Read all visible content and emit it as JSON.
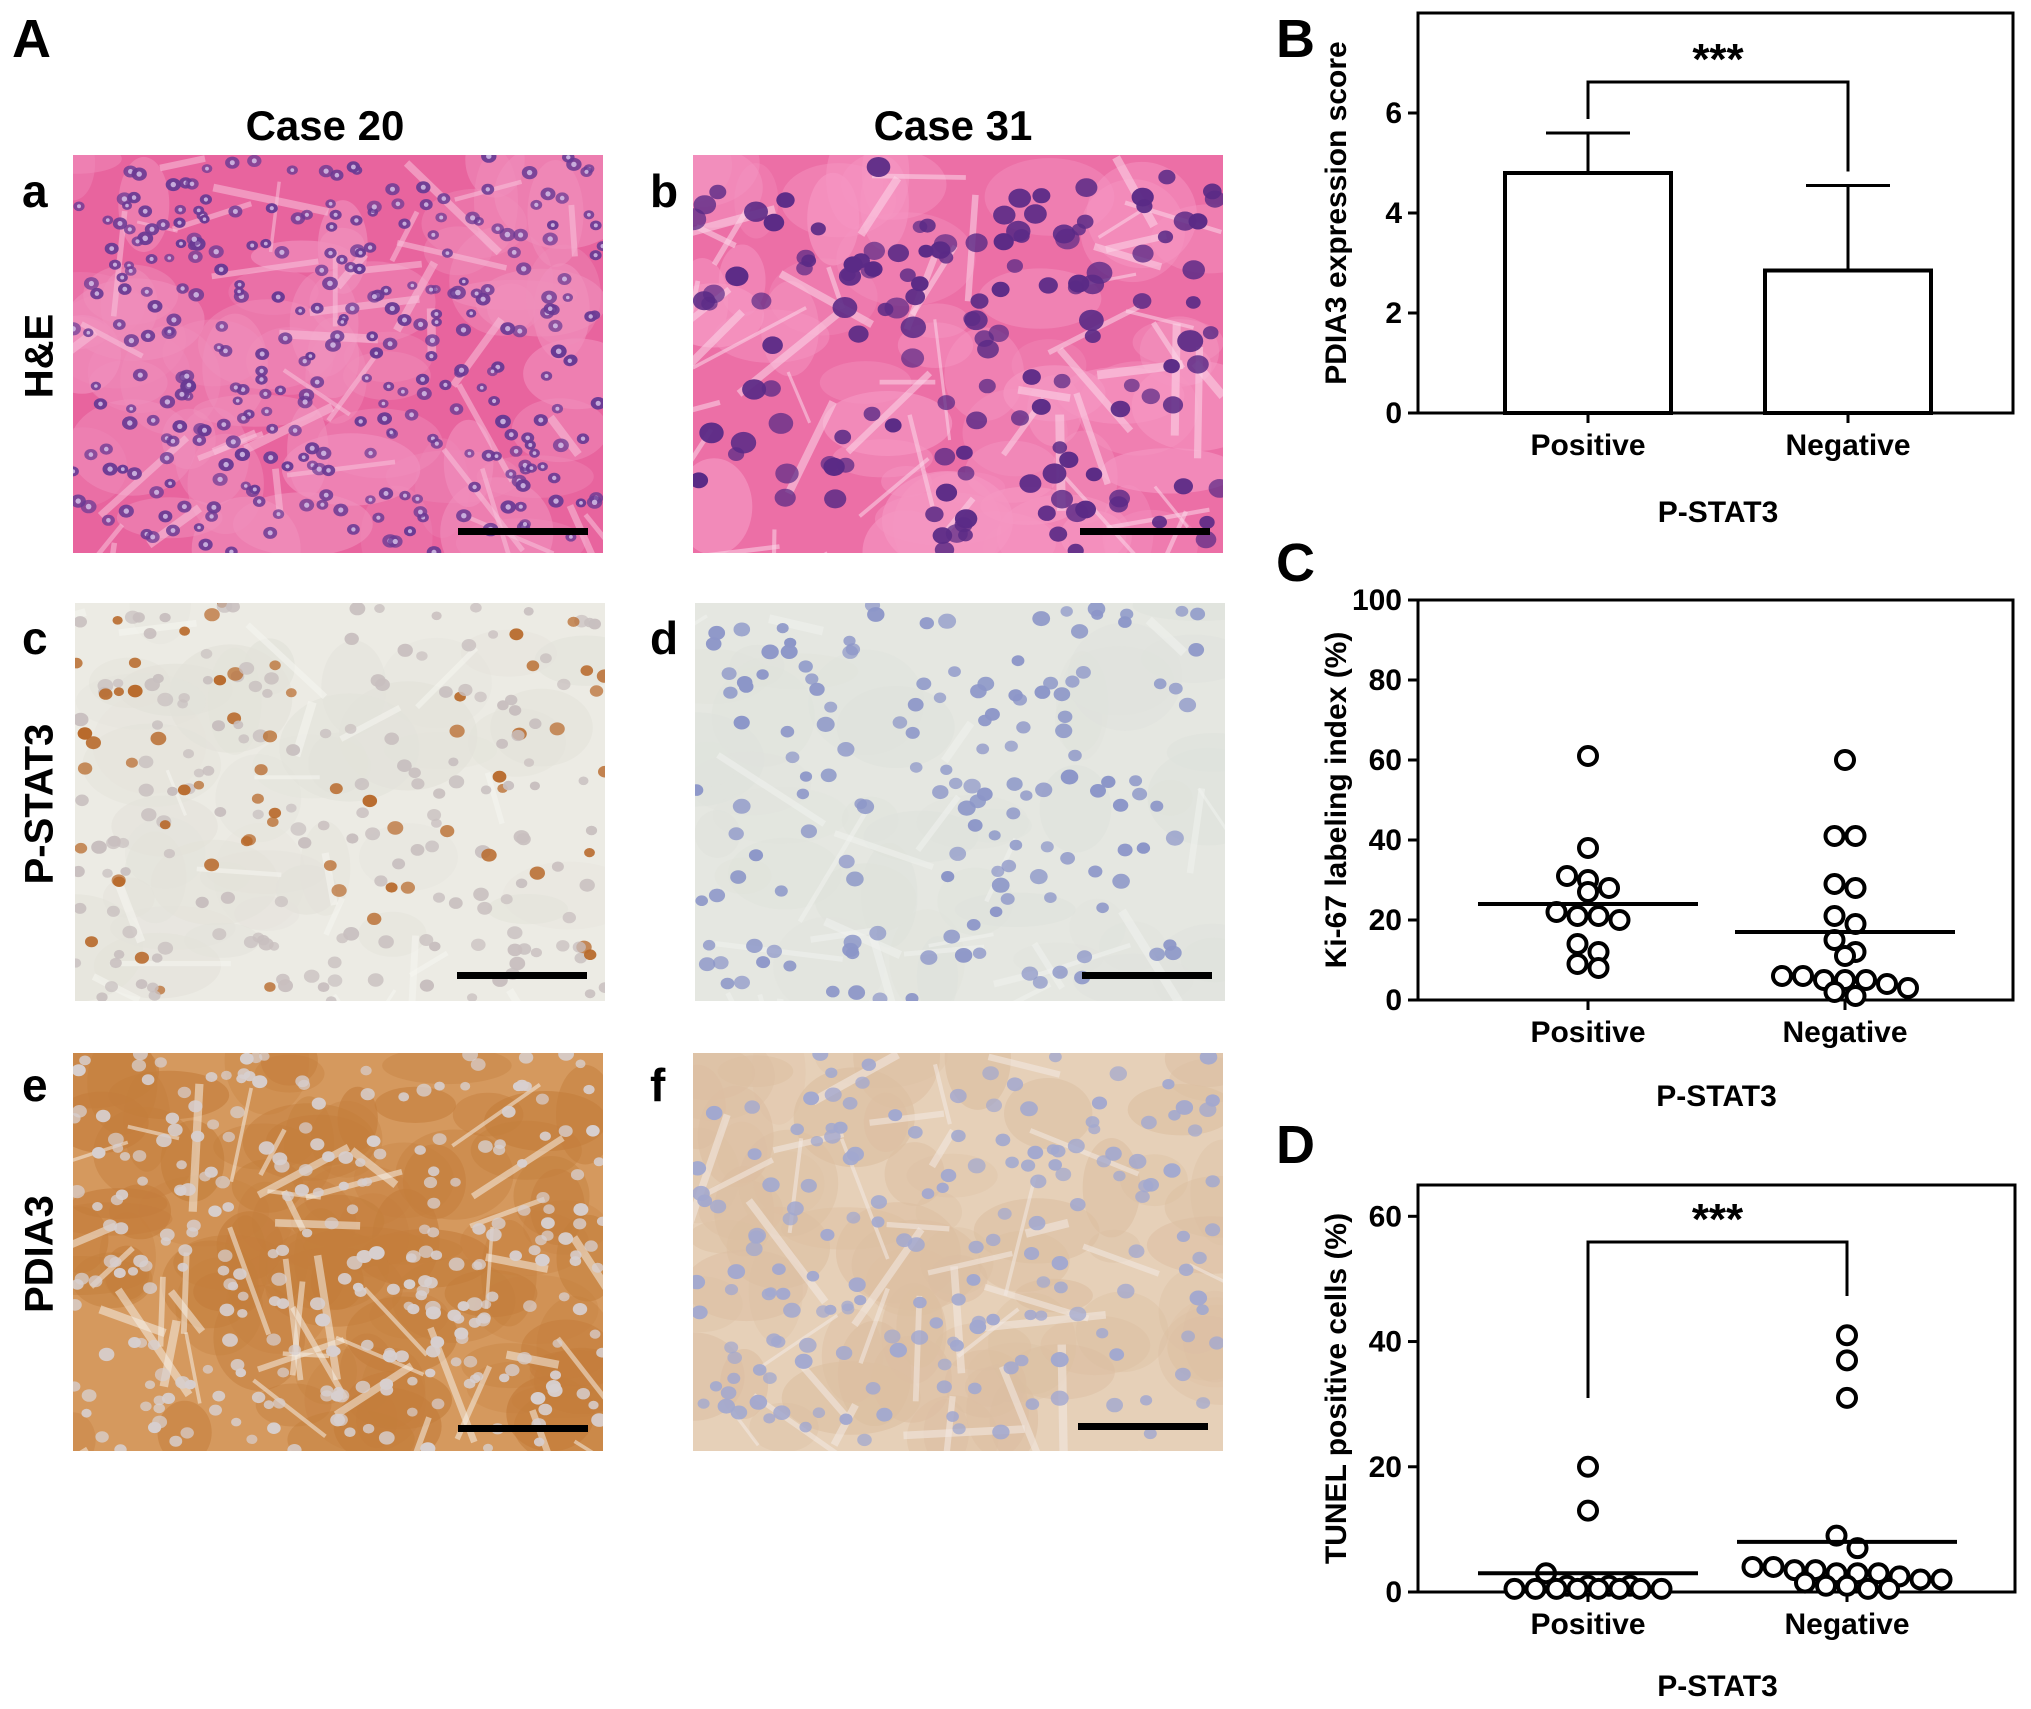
{
  "figure": {
    "panel_A_letter": "A",
    "columns": [
      "Case 20",
      "Case 31"
    ],
    "rows": [
      {
        "stain": "H&E",
        "letters": [
          "a",
          "b"
        ]
      },
      {
        "stain": "P-STAT3",
        "letters": [
          "c",
          "d"
        ]
      },
      {
        "stain": "PDIA3",
        "letters": [
          "e",
          "f"
        ]
      }
    ],
    "colors": {
      "he_background": "#e8649e",
      "he_nucleus": "#5a2a86",
      "ihc_background": "#ecebe4",
      "brown_dab": "#b86a2c",
      "hematoxylin_blue": "#8c96c8",
      "pdia3_strong": "#d5995e",
      "pdia3_weak": "#e6d0b8"
    }
  },
  "chart_data": [
    {
      "letter": "B",
      "type": "bar",
      "categories": [
        "Positive",
        "Negative"
      ],
      "values": [
        4.8,
        2.85
      ],
      "errors": [
        0.8,
        1.7
      ],
      "ylabel": "PDIA3 expression score",
      "xlabel": "P-STAT3",
      "ylim": [
        0,
        8
      ],
      "yticks": [
        0,
        2,
        4,
        6
      ],
      "significance": "***"
    },
    {
      "letter": "C",
      "type": "scatter",
      "categories": [
        "Positive",
        "Negative"
      ],
      "ylabel": "Ki-67 labeling index (%)",
      "xlabel": "P-STAT3",
      "ylim": [
        0,
        100
      ],
      "yticks": [
        0,
        20,
        40,
        60,
        80,
        100
      ],
      "means": [
        24,
        17
      ],
      "series": [
        {
          "values": [
            61,
            38,
            30,
            31,
            28,
            27,
            22,
            21,
            21,
            20,
            14,
            12,
            9,
            8
          ]
        },
        {
          "values": [
            60,
            41,
            41,
            29,
            28,
            21,
            19,
            15,
            12,
            11,
            6,
            6,
            5,
            5,
            5,
            4,
            3,
            2,
            1
          ]
        }
      ]
    },
    {
      "letter": "D",
      "type": "scatter",
      "categories": [
        "Positive",
        "Negative"
      ],
      "ylabel": "TUNEL positive cells (%)",
      "xlabel": "P-STAT3",
      "ylim": [
        0,
        65
      ],
      "yticks": [
        0,
        20,
        40,
        60
      ],
      "means": [
        3,
        8
      ],
      "significance": "***",
      "series": [
        {
          "values": [
            20,
            13,
            3,
            1,
            1,
            1,
            1,
            0.5,
            0.5,
            0.5,
            0.5,
            0.5,
            0.5,
            0.5,
            0.5
          ]
        },
        {
          "values": [
            41,
            37,
            31,
            9,
            7,
            4,
            4,
            3.5,
            3.5,
            3,
            3,
            3,
            2.5,
            2,
            2,
            1.5,
            1,
            1,
            0.5,
            0.5
          ]
        }
      ]
    }
  ]
}
